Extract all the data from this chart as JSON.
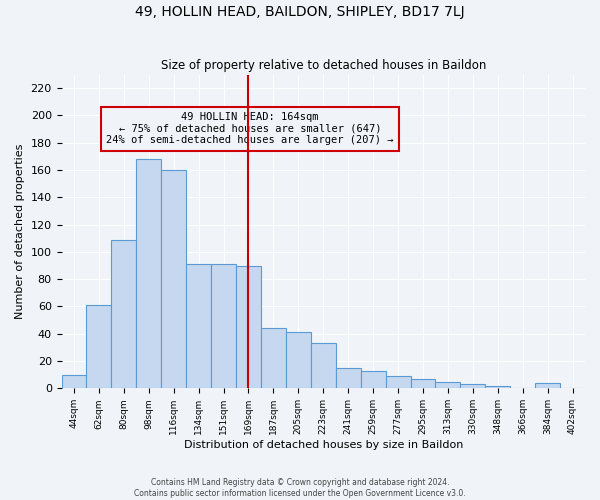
{
  "title": "49, HOLLIN HEAD, BAILDON, SHIPLEY, BD17 7LJ",
  "subtitle": "Size of property relative to detached houses in Baildon",
  "xlabel": "Distribution of detached houses by size in Baildon",
  "ylabel": "Number of detached properties",
  "categories": [
    "44sqm",
    "62sqm",
    "80sqm",
    "98sqm",
    "116sqm",
    "134sqm",
    "151sqm",
    "169sqm",
    "187sqm",
    "205sqm",
    "223sqm",
    "241sqm",
    "259sqm",
    "277sqm",
    "295sqm",
    "313sqm",
    "330sqm",
    "348sqm",
    "366sqm",
    "384sqm",
    "402sqm"
  ],
  "values": [
    10,
    61,
    109,
    168,
    160,
    91,
    91,
    90,
    44,
    41,
    33,
    15,
    13,
    9,
    7,
    5,
    3,
    2,
    0,
    4,
    0
  ],
  "bar_color": "#c5d8f0",
  "bar_edge_color": "#5b9bd5",
  "vline_x": 7,
  "vline_color": "#cc0000",
  "annotation_title": "49 HOLLIN HEAD: 164sqm",
  "annotation_line1": "← 75% of detached houses are smaller (647)",
  "annotation_line2": "24% of semi-detached houses are larger (207) →",
  "box_edge_color": "#cc0000",
  "ylim": [
    0,
    230
  ],
  "yticks": [
    0,
    20,
    40,
    60,
    80,
    100,
    120,
    140,
    160,
    180,
    200,
    220
  ],
  "footer1": "Contains HM Land Registry data © Crown copyright and database right 2024.",
  "footer2": "Contains public sector information licensed under the Open Government Licence v3.0.",
  "background_color": "#f0f4f8",
  "grid_color": "#ffffff"
}
